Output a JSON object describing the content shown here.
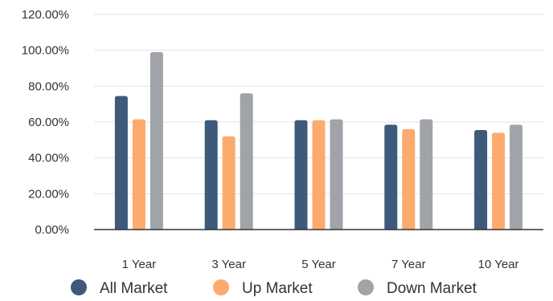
{
  "chart_data": {
    "type": "bar",
    "categories": [
      "1 Year",
      "3 Year",
      "5 Year",
      "7 Year",
      "10 Year"
    ],
    "series": [
      {
        "name": "All Market",
        "values": [
          74.5,
          61.0,
          61.0,
          58.5,
          55.5
        ],
        "color": "#3d5a7a"
      },
      {
        "name": "Up Market",
        "values": [
          61.5,
          52.0,
          61.0,
          56.0,
          54.0
        ],
        "color": "#fcaa6e"
      },
      {
        "name": "Down Market",
        "values": [
          99.0,
          76.0,
          61.5,
          61.5,
          58.5
        ],
        "color": "#a0a4a8"
      }
    ],
    "y_ticks": [
      "0.00%",
      "20.00%",
      "40.00%",
      "60.00%",
      "80.00%",
      "100.00%",
      "120.00%"
    ],
    "ylim": [
      0,
      120
    ],
    "grid": true,
    "legend_position": "bottom",
    "title": "",
    "xlabel": "",
    "ylabel": ""
  }
}
